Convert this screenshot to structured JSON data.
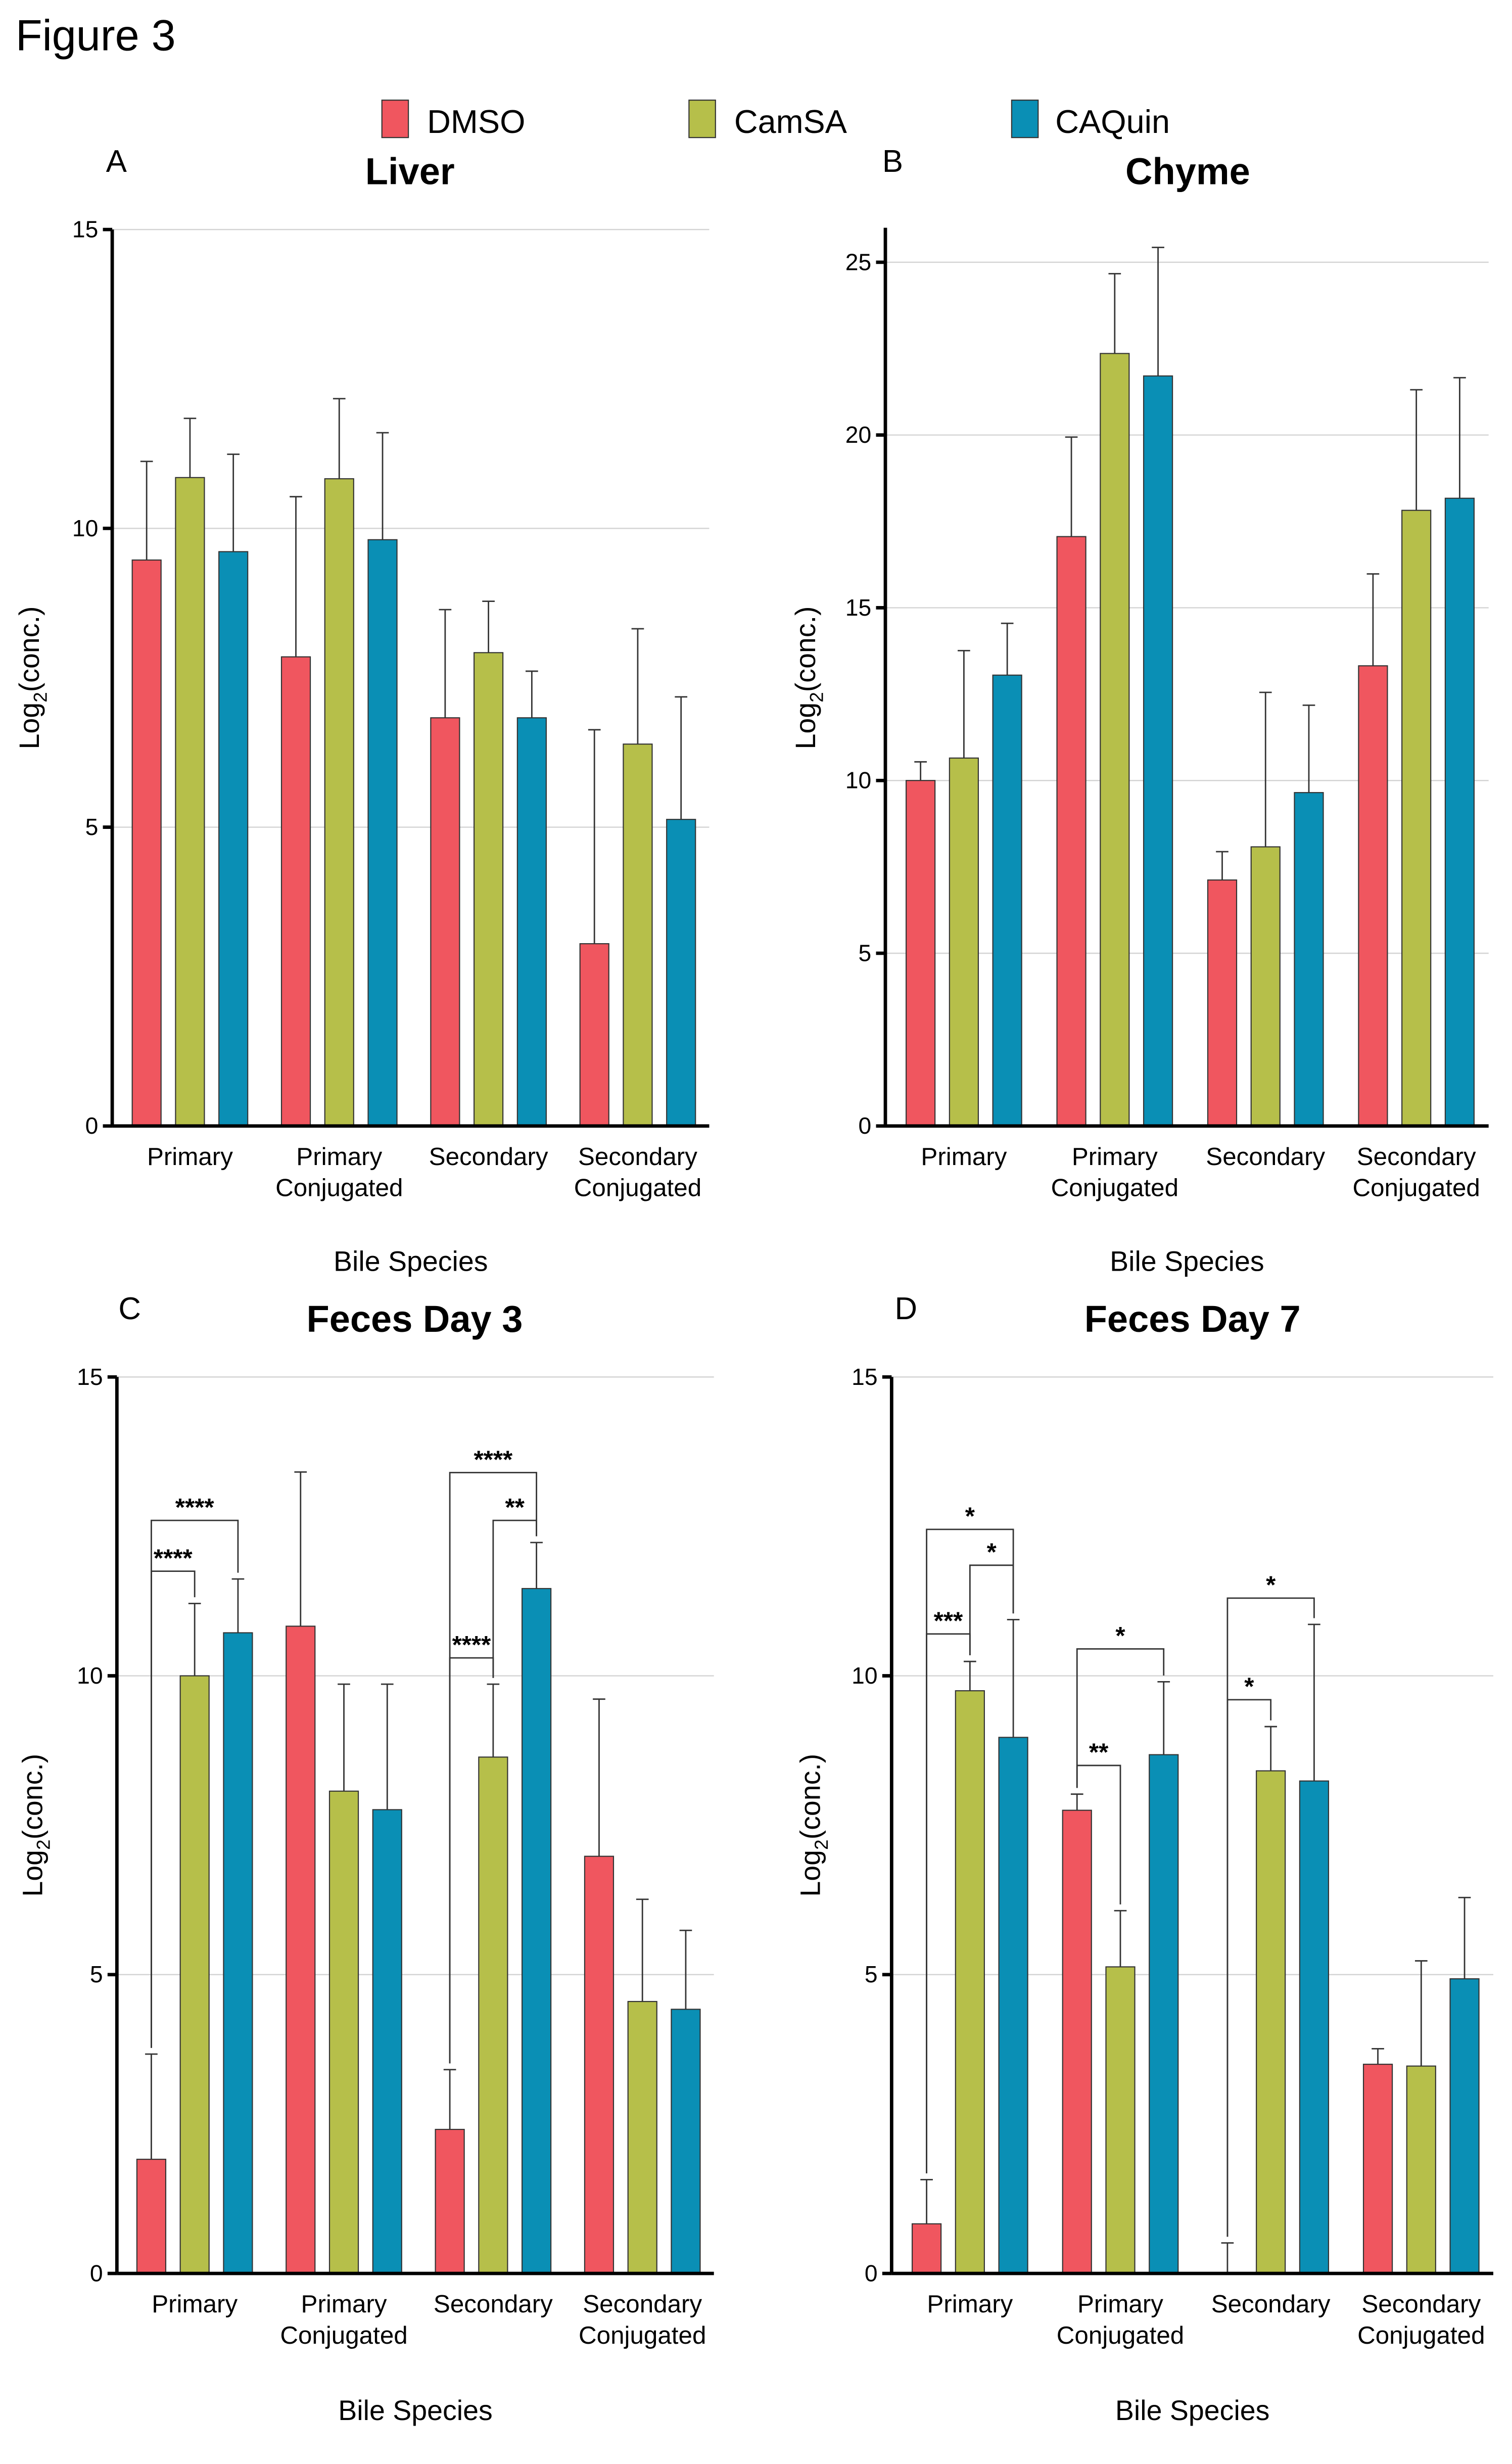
{
  "figure_title": "Figure 3",
  "legend": [
    {
      "name": "DMSO",
      "color": "#F0565F"
    },
    {
      "name": "CamSA",
      "color": "#B6BF4A"
    },
    {
      "name": "CAQuin",
      "color": "#0A8FB5"
    }
  ],
  "chart_data": [
    {
      "panel": "A",
      "type": "bar",
      "title": "Liver",
      "xlabel": "Bile Species",
      "ylabel": "Log2(conc.)",
      "ylim": [
        0,
        15
      ],
      "yticks": [
        0,
        5,
        10,
        15
      ],
      "grid": true,
      "categories": [
        "Primary",
        "Primary Conjugated",
        "Secondary",
        "Secondary Conjugated"
      ],
      "series": [
        {
          "name": "DMSO",
          "values": [
            9.47,
            7.85,
            6.83,
            3.05
          ],
          "error_upper": [
            11.12,
            10.53,
            8.64,
            6.63
          ]
        },
        {
          "name": "CamSA",
          "values": [
            10.85,
            10.83,
            7.92,
            6.39
          ],
          "error_upper": [
            11.84,
            12.17,
            8.78,
            8.32
          ]
        },
        {
          "name": "CAQuin",
          "values": [
            9.61,
            9.81,
            6.83,
            5.13
          ],
          "error_upper": [
            11.24,
            11.6,
            7.61,
            7.18
          ]
        }
      ],
      "significance": []
    },
    {
      "panel": "B",
      "type": "bar",
      "title": "Chyme",
      "xlabel": "Bile Species",
      "ylabel": "Log2(conc.)",
      "ylim": [
        0,
        26
      ],
      "yticks": [
        0,
        5,
        10,
        15,
        20,
        25
      ],
      "grid": true,
      "categories": [
        "Primary",
        "Primary Conjugated",
        "Secondary",
        "Secondary Conjugated"
      ],
      "series": [
        {
          "name": "DMSO",
          "values": [
            10.0,
            17.06,
            7.12,
            13.32
          ],
          "error_upper": [
            10.54,
            19.94,
            7.94,
            15.98
          ]
        },
        {
          "name": "CamSA",
          "values": [
            10.65,
            22.36,
            8.08,
            17.82
          ],
          "error_upper": [
            13.76,
            24.67,
            12.55,
            21.31
          ]
        },
        {
          "name": "CAQuin",
          "values": [
            13.05,
            21.71,
            9.65,
            18.17
          ],
          "error_upper": [
            14.55,
            25.43,
            12.18,
            21.66
          ]
        }
      ],
      "significance": []
    },
    {
      "panel": "C",
      "type": "bar",
      "title": "Feces Day 3",
      "xlabel": "Bile Species",
      "ylabel": "Log2(conc.)",
      "ylim": [
        0,
        15
      ],
      "yticks": [
        0,
        5,
        10,
        15
      ],
      "grid": true,
      "categories": [
        "Primary",
        "Primary Conjugated",
        "Secondary",
        "Secondary Conjugated"
      ],
      "series": [
        {
          "name": "DMSO",
          "values": [
            1.91,
            10.83,
            2.41,
            6.98
          ],
          "error_upper": [
            3.67,
            13.41,
            3.41,
            9.61
          ]
        },
        {
          "name": "CamSA",
          "values": [
            10.0,
            8.07,
            8.64,
            4.55
          ],
          "error_upper": [
            11.21,
            9.86,
            9.86,
            6.26
          ]
        },
        {
          "name": "CAQuin",
          "values": [
            10.72,
            7.76,
            11.46,
            4.42
          ],
          "error_upper": [
            11.62,
            9.86,
            12.23,
            5.74
          ]
        }
      ],
      "significance": [
        {
          "category": 0,
          "from": 0,
          "to": 1,
          "label": "****",
          "level": 11.75
        },
        {
          "category": 0,
          "from": 0,
          "to": 2,
          "label": "****",
          "level": 12.6
        },
        {
          "category": 2,
          "from": 0,
          "to": 1,
          "label": "****",
          "level": 10.3
        },
        {
          "category": 2,
          "from": 1,
          "to": 2,
          "label": "**",
          "level": 12.6
        },
        {
          "category": 2,
          "from": 0,
          "to": 2,
          "label": "****",
          "level": 13.4
        }
      ]
    },
    {
      "panel": "D",
      "type": "bar",
      "title": "Feces Day 7",
      "xlabel": "Bile Species",
      "ylabel": "Log2(conc.)",
      "ylim": [
        0,
        15
      ],
      "yticks": [
        0,
        5,
        10,
        15
      ],
      "grid": true,
      "categories": [
        "Primary",
        "Primary Conjugated",
        "Secondary",
        "Secondary Conjugated"
      ],
      "series": [
        {
          "name": "DMSO",
          "values": [
            0.83,
            7.75,
            0.0,
            3.5
          ],
          "error_upper": [
            1.57,
            8.02,
            0.51,
            3.76
          ]
        },
        {
          "name": "CamSA",
          "values": [
            9.75,
            5.13,
            8.41,
            3.47
          ],
          "error_upper": [
            10.24,
            6.07,
            9.15,
            5.23
          ]
        },
        {
          "name": "CAQuin",
          "values": [
            8.97,
            8.68,
            8.24,
            4.93
          ],
          "error_upper": [
            10.94,
            9.9,
            10.86,
            6.29
          ]
        }
      ],
      "significance": [
        {
          "category": 0,
          "from": 0,
          "to": 1,
          "label": "***",
          "level": 10.7
        },
        {
          "category": 0,
          "from": 1,
          "to": 2,
          "label": "*",
          "level": 11.85
        },
        {
          "category": 0,
          "from": 0,
          "to": 2,
          "label": "*",
          "level": 12.45
        },
        {
          "category": 1,
          "from": 0,
          "to": 1,
          "label": "**",
          "level": 8.5
        },
        {
          "category": 1,
          "from": 0,
          "to": 2,
          "label": "*",
          "level": 10.45
        },
        {
          "category": 2,
          "from": 0,
          "to": 1,
          "label": "*",
          "level": 9.6
        },
        {
          "category": 2,
          "from": 0,
          "to": 2,
          "label": "*",
          "level": 11.3
        }
      ]
    }
  ]
}
